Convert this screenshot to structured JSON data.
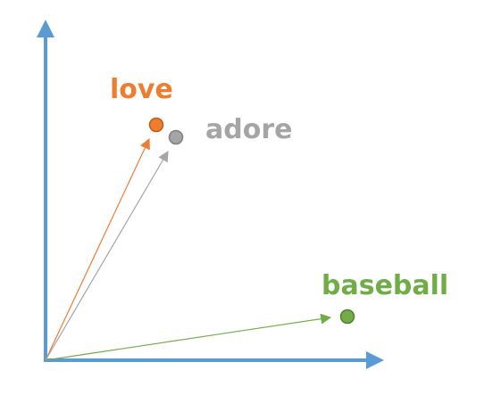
{
  "diagram": {
    "axis_color": "#5B9BD5",
    "vectors": [
      {
        "id": "love",
        "label": "love",
        "color": "#ED7D31",
        "marker_stroke": "#C55A11"
      },
      {
        "id": "adore",
        "label": "adore",
        "color": "#A5A5A5",
        "marker_stroke": "#7F7F7F"
      },
      {
        "id": "baseball",
        "label": "baseball",
        "color": "#70AD47",
        "marker_stroke": "#507E32"
      }
    ]
  }
}
